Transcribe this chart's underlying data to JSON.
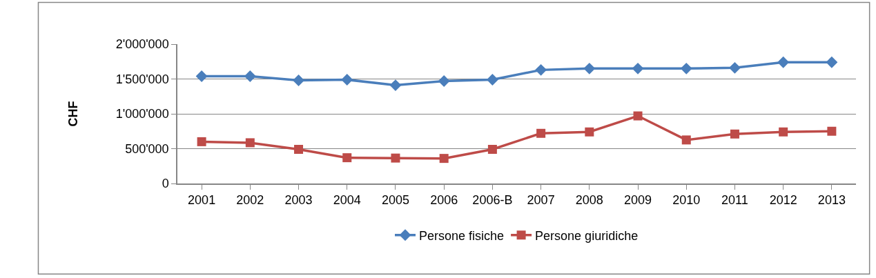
{
  "chart_data": {
    "type": "line",
    "ylabel": "CHF",
    "categories": [
      "2001",
      "2002",
      "2003",
      "2004",
      "2005",
      "2006",
      "2006-B",
      "2007",
      "2008",
      "2009",
      "2010",
      "2011",
      "2012",
      "2013"
    ],
    "series": [
      {
        "name": "Persone fisiche",
        "color": "#4a7ebb",
        "marker": "diamond",
        "values": [
          1540000,
          1540000,
          1480000,
          1490000,
          1410000,
          1470000,
          1490000,
          1630000,
          1650000,
          1650000,
          1650000,
          1660000,
          1740000,
          1740000
        ]
      },
      {
        "name": "Persone giuridiche",
        "color": "#be4b48",
        "marker": "square",
        "values": [
          600000,
          585000,
          490000,
          370000,
          365000,
          360000,
          490000,
          720000,
          740000,
          970000,
          625000,
          710000,
          740000,
          750000
        ]
      }
    ],
    "ylim": [
      0,
      2000000
    ],
    "yticks": [
      {
        "value": 0,
        "label": "0"
      },
      {
        "value": 500000,
        "label": "500'000"
      },
      {
        "value": 1000000,
        "label": "1'000'000"
      },
      {
        "value": 1500000,
        "label": "1'500'000"
      },
      {
        "value": 2000000,
        "label": "2'000'000"
      }
    ],
    "grid": "y",
    "legend": "bottom",
    "line_style": "solid"
  }
}
